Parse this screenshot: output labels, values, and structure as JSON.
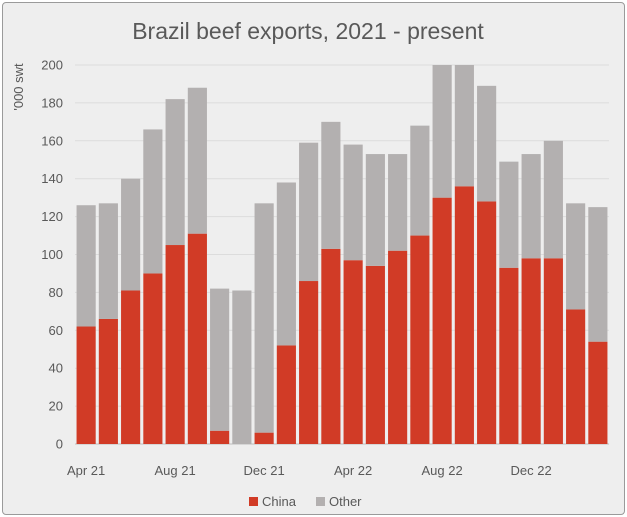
{
  "chart_data": {
    "type": "bar",
    "stacked": true,
    "title": "Brazil beef exports, 2021 - present",
    "ylabel": "'000 swt",
    "xlabel": "",
    "ylim": [
      0,
      200
    ],
    "yticks": [
      0,
      20,
      40,
      60,
      80,
      100,
      120,
      140,
      160,
      180,
      200
    ],
    "categories": [
      "Apr 21",
      "May 21",
      "Jun 21",
      "Jul 21",
      "Aug 21",
      "Sep 21",
      "Oct 21",
      "Nov 21",
      "Dec 21",
      "Jan 22",
      "Feb 22",
      "Mar 22",
      "Apr 22",
      "May 22",
      "Jun 22",
      "Jul 22",
      "Aug 22",
      "Sep 22",
      "Oct 22",
      "Nov 22",
      "Dec 22",
      "Jan 23",
      "Feb 23",
      "Mar 23"
    ],
    "x_tick_labels": [
      "Apr 21",
      "Aug 21",
      "Dec 21",
      "Apr 22",
      "Aug 22",
      "Dec 22"
    ],
    "x_tick_indices": [
      0,
      4,
      8,
      12,
      16,
      20
    ],
    "series": [
      {
        "name": "China",
        "color": "#d13b26",
        "values": [
          62,
          66,
          81,
          90,
          105,
          111,
          7,
          0,
          6,
          52,
          86,
          103,
          97,
          94,
          102,
          110,
          130,
          136,
          128,
          93,
          98,
          98,
          71,
          54
        ]
      },
      {
        "name": "Other",
        "color": "#b3b0b0",
        "values": [
          64,
          61,
          59,
          76,
          77,
          77,
          75,
          81,
          121,
          86,
          73,
          67,
          61,
          59,
          51,
          58,
          70,
          64,
          61,
          56,
          55,
          62,
          56,
          71
        ]
      }
    ],
    "grid": true,
    "legend_position": "bottom-center"
  }
}
